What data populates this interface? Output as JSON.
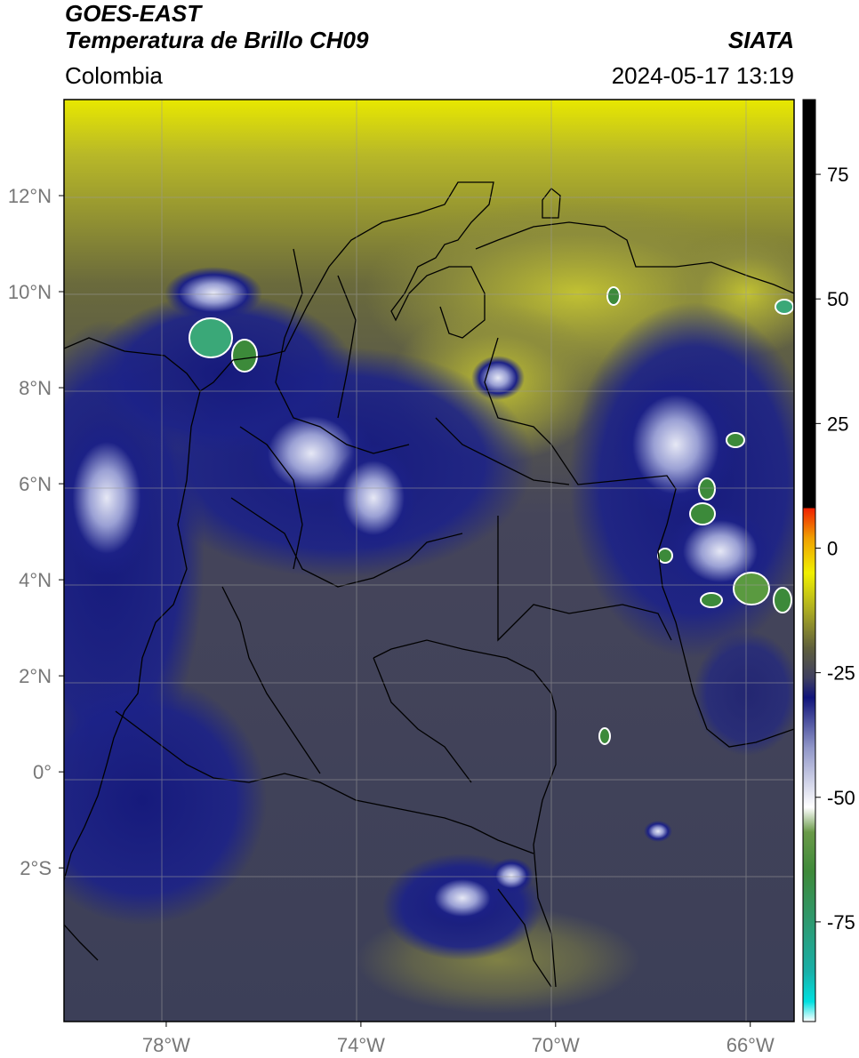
{
  "header": {
    "satellite": "GOES-EAST",
    "product": "Temperatura de Brillo CH09",
    "organization": "SIATA",
    "region": "Colombia",
    "datetime": "2024-05-17 13:19"
  },
  "map": {
    "lon_range": [
      -80.1,
      -65.1
    ],
    "lat_range": [
      -5.2,
      14
    ],
    "lat_ticks": [
      {
        "value": 12,
        "label": "12°N"
      },
      {
        "value": 10,
        "label": "10°N"
      },
      {
        "value": 8,
        "label": "8°N"
      },
      {
        "value": 6,
        "label": "6°N"
      },
      {
        "value": 4,
        "label": "4°N"
      },
      {
        "value": 2,
        "label": "2°N"
      },
      {
        "value": 0,
        "label": "0°"
      },
      {
        "value": -2,
        "label": "2°S"
      }
    ],
    "lon_ticks": [
      {
        "value": -78,
        "label": "78°W"
      },
      {
        "value": -74,
        "label": "74°W"
      },
      {
        "value": -70,
        "label": "70°W"
      },
      {
        "value": -66,
        "label": "66°W"
      }
    ],
    "grid": true,
    "background_color": "#3c3f60",
    "cold_cloud_colors": {
      "deep": "#1e237f",
      "cold": "#c9cde8",
      "coldest": "#3aa878"
    },
    "warm_color": "#a8a83a"
  },
  "colorbar": {
    "position": "right",
    "range": [
      -95,
      90
    ],
    "ticks": [
      {
        "value": 75,
        "label": "75"
      },
      {
        "value": 50,
        "label": "50"
      },
      {
        "value": 25,
        "label": "25"
      },
      {
        "value": 0,
        "label": "0"
      },
      {
        "value": -25,
        "label": "-25"
      },
      {
        "value": -50,
        "label": "-50"
      },
      {
        "value": -75,
        "label": "-75"
      }
    ],
    "stops": [
      {
        "value": -95,
        "color": "#ffffff"
      },
      {
        "value": -91,
        "color": "#00e0e0"
      },
      {
        "value": -85,
        "color": "#18b0a8"
      },
      {
        "value": -75,
        "color": "#2e9a70"
      },
      {
        "value": -65,
        "color": "#3e8a3a"
      },
      {
        "value": -57,
        "color": "#6a9a48"
      },
      {
        "value": -52,
        "color": "#ffffff"
      },
      {
        "value": -40,
        "color": "#9096c8"
      },
      {
        "value": -30,
        "color": "#10147a"
      },
      {
        "value": -26,
        "color": "#404060"
      },
      {
        "value": -20,
        "color": "#60603c"
      },
      {
        "value": -12,
        "color": "#b0b020"
      },
      {
        "value": -5,
        "color": "#f0f000"
      },
      {
        "value": 2,
        "color": "#f0a000"
      },
      {
        "value": 8,
        "color": "#f02000"
      },
      {
        "value": 8.01,
        "color": "#000000"
      },
      {
        "value": 90,
        "color": "#000000"
      }
    ]
  }
}
